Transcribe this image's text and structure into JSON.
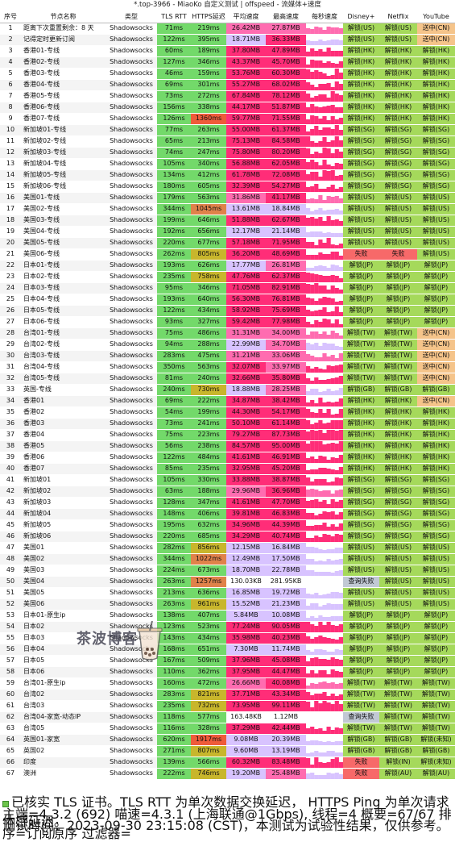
{
  "window_title": "*.top-3966 - MiaoKo 自定义测试 | offspeed - 流媒体+速度",
  "headers": [
    "序号",
    "节点名称",
    "类型",
    "TLS RTT",
    "HTTPS延迟",
    "平均速度",
    "最高速度",
    "每秒速度",
    "Disney+",
    "Netflix",
    "YouTube"
  ],
  "rows": [
    [
      "1",
      "距离下次重置剩余：8 天",
      "Shadowsocks",
      "71ms",
      "219ms",
      "26.42MB",
      "27.87MB",
      "解锁(US)",
      "解锁(US)",
      "送中(CN)"
    ],
    [
      "2",
      "记得定时更新订阅",
      "Shadowsocks",
      "122ms",
      "395ms",
      "18.71MB",
      "36.33MB",
      "解锁(US)",
      "解锁(US)",
      "送中(CN)"
    ],
    [
      "3",
      "香港01-专线",
      "Shadowsocks",
      "60ms",
      "189ms",
      "37.80MB",
      "47.89MB",
      "解锁(HK)",
      "解锁(HK)",
      "解锁(HK)"
    ],
    [
      "4",
      "香港02-专线",
      "Shadowsocks",
      "127ms",
      "346ms",
      "43.37MB",
      "45.70MB",
      "解锁(HK)",
      "解锁(HK)",
      "解锁(HK)"
    ],
    [
      "5",
      "香港03-专线",
      "Shadowsocks",
      "46ms",
      "159ms",
      "53.76MB",
      "60.30MB",
      "解锁(HK)",
      "解锁(HK)",
      "解锁(HK)"
    ],
    [
      "6",
      "香港04-专线",
      "Shadowsocks",
      "69ms",
      "301ms",
      "55.27MB",
      "68.02MB",
      "解锁(HK)",
      "解锁(HK)",
      "解锁(HK)"
    ],
    [
      "7",
      "香港05-专线",
      "Shadowsocks",
      "73ms",
      "272ms",
      "67.84MB",
      "78.12MB",
      "解锁(HK)",
      "解锁(HK)",
      "解锁(HK)"
    ],
    [
      "8",
      "香港06-专线",
      "Shadowsocks",
      "156ms",
      "338ms",
      "44.17MB",
      "51.87MB",
      "解锁(HK)",
      "解锁(HK)",
      "解锁(HK)"
    ],
    [
      "9",
      "香港07-专线",
      "Shadowsocks",
      "126ms",
      "1360ms",
      "59.77MB",
      "71.55MB",
      "解锁(HK)",
      "解锁(HK)",
      "解锁(HK)"
    ],
    [
      "10",
      "新加坡01-专线",
      "Shadowsocks",
      "77ms",
      "263ms",
      "55.00MB",
      "61.37MB",
      "解锁(SG)",
      "解锁(SG)",
      "解锁(SG)"
    ],
    [
      "11",
      "新加坡02-专线",
      "Shadowsocks",
      "65ms",
      "213ms",
      "75.13MB",
      "84.58MB",
      "解锁(SG)",
      "解锁(SG)",
      "解锁(SG)"
    ],
    [
      "12",
      "新加坡03-专线",
      "Shadowsocks",
      "74ms",
      "247ms",
      "75.80MB",
      "80.20MB",
      "解锁(SG)",
      "解锁(SG)",
      "解锁(SG)"
    ],
    [
      "13",
      "新加坡04-专线",
      "Shadowsocks",
      "105ms",
      "340ms",
      "56.88MB",
      "62.05MB",
      "解锁(SG)",
      "解锁(SG)",
      "解锁(SG)"
    ],
    [
      "14",
      "新加坡05-专线",
      "Shadowsocks",
      "134ms",
      "412ms",
      "61.78MB",
      "72.08MB",
      "解锁(SG)",
      "解锁(SG)",
      "解锁(SG)"
    ],
    [
      "15",
      "新加坡06-专线",
      "Shadowsocks",
      "180ms",
      "605ms",
      "32.39MB",
      "54.27MB",
      "解锁(SG)",
      "解锁(SG)",
      "解锁(SG)"
    ],
    [
      "16",
      "美国01-专线",
      "Shadowsocks",
      "179ms",
      "563ms",
      "31.86MB",
      "41.17MB",
      "解锁(US)",
      "解锁(US)",
      "解锁(US)"
    ],
    [
      "17",
      "美国02-专线",
      "Shadowsocks",
      "344ms",
      "1045ms",
      "13.61MB",
      "18.84MB",
      "解锁(US)",
      "解锁(US)",
      "解锁(US)"
    ],
    [
      "18",
      "美国03-专线",
      "Shadowsocks",
      "199ms",
      "646ms",
      "51.88MB",
      "62.67MB",
      "解锁(US)",
      "解锁(US)",
      "解锁(US)"
    ],
    [
      "19",
      "美国04-专线",
      "Shadowsocks",
      "192ms",
      "656ms",
      "12.17MB",
      "21.14MB",
      "解锁(US)",
      "解锁(US)",
      "解锁(US)"
    ],
    [
      "20",
      "美国05-专线",
      "Shadowsocks",
      "220ms",
      "677ms",
      "57.18MB",
      "71.95MB",
      "解锁(US)",
      "解锁(US)",
      "解锁(US)"
    ],
    [
      "21",
      "美国06-专线",
      "Shadowsocks",
      "262ms",
      "805ms",
      "36.20MB",
      "48.69MB",
      "失败",
      "失败",
      "解锁(US)"
    ],
    [
      "22",
      "日本01-专线",
      "Shadowsocks",
      "193ms",
      "626ms",
      "17.77MB",
      "26.81MB",
      "解锁(JP)",
      "解锁(JP)",
      "解锁(JP)"
    ],
    [
      "23",
      "日本02-专线",
      "Shadowsocks",
      "235ms",
      "758ms",
      "47.76MB",
      "62.37MB",
      "解锁(JP)",
      "解锁(JP)",
      "解锁(JP)"
    ],
    [
      "24",
      "日本03-专线",
      "Shadowsocks",
      "95ms",
      "346ms",
      "71.05MB",
      "82.91MB",
      "解锁(JP)",
      "解锁(JP)",
      "解锁(JP)"
    ],
    [
      "25",
      "日本04-专线",
      "Shadowsocks",
      "193ms",
      "640ms",
      "56.30MB",
      "76.81MB",
      "解锁(JP)",
      "解锁(JP)",
      "解锁(JP)"
    ],
    [
      "26",
      "日本05-专线",
      "Shadowsocks",
      "122ms",
      "434ms",
      "58.92MB",
      "75.69MB",
      "解锁(JP)",
      "解锁(JP)",
      "解锁(JP)"
    ],
    [
      "27",
      "日本06-专线",
      "Shadowsocks",
      "93ms",
      "327ms",
      "59.42MB",
      "77.98MB",
      "解锁(JP)",
      "解锁(JP)",
      "解锁(JP)"
    ],
    [
      "28",
      "台湾01-专线",
      "Shadowsocks",
      "75ms",
      "486ms",
      "31.31MB",
      "34.00MB",
      "解锁(TW)",
      "解锁(TW)",
      "送中(CN)"
    ],
    [
      "29",
      "台湾02-专线",
      "Shadowsocks",
      "94ms",
      "288ms",
      "22.99MB",
      "34.70MB",
      "解锁(TW)",
      "解锁(TW)",
      "送中(CN)"
    ],
    [
      "30",
      "台湾03-专线",
      "Shadowsocks",
      "283ms",
      "475ms",
      "31.21MB",
      "33.06MB",
      "解锁(TW)",
      "解锁(TW)",
      "送中(CN)"
    ],
    [
      "31",
      "台湾04-专线",
      "Shadowsocks",
      "350ms",
      "563ms",
      "32.07MB",
      "33.97MB",
      "解锁(TW)",
      "解锁(TW)",
      "送中(CN)"
    ],
    [
      "32",
      "台湾05-专线",
      "Shadowsocks",
      "81ms",
      "240ms",
      "32.66MB",
      "35.80MB",
      "解锁(TW)",
      "解锁(TW)",
      "送中(CN)"
    ],
    [
      "33",
      "英国-专线",
      "Shadowsocks",
      "240ms",
      "730ms",
      "18.88MB",
      "28.25MB",
      "解锁(GB)",
      "解锁(GB)",
      "解锁(GB)"
    ],
    [
      "34",
      "香港01",
      "Shadowsocks",
      "69ms",
      "222ms",
      "34.87MB",
      "38.42MB",
      "解锁(HK)",
      "解锁(HK)",
      "送中(CN)"
    ],
    [
      "35",
      "香港02",
      "Shadowsocks",
      "54ms",
      "199ms",
      "44.30MB",
      "54.17MB",
      "解锁(HK)",
      "解锁(HK)",
      "解锁(HK)"
    ],
    [
      "36",
      "香港03",
      "Shadowsocks",
      "73ms",
      "241ms",
      "50.10MB",
      "61.14MB",
      "解锁(HK)",
      "解锁(HK)",
      "解锁(HK)"
    ],
    [
      "37",
      "香港04",
      "Shadowsocks",
      "75ms",
      "223ms",
      "79.27MB",
      "87.73MB",
      "解锁(HK)",
      "解锁(HK)",
      "解锁(HK)"
    ],
    [
      "38",
      "香港05",
      "Shadowsocks",
      "56ms",
      "238ms",
      "84.57MB",
      "95.00MB",
      "解锁(HK)",
      "解锁(HK)",
      "解锁(HK)"
    ],
    [
      "39",
      "香港06",
      "Shadowsocks",
      "122ms",
      "484ms",
      "41.61MB",
      "46.91MB",
      "解锁(HK)",
      "解锁(HK)",
      "解锁(HK)"
    ],
    [
      "40",
      "香港07",
      "Shadowsocks",
      "85ms",
      "235ms",
      "32.95MB",
      "45.20MB",
      "解锁(HK)",
      "解锁(HK)",
      "解锁(HK)"
    ],
    [
      "41",
      "新加坡01",
      "Shadowsocks",
      "105ms",
      "330ms",
      "33.88MB",
      "38.87MB",
      "解锁(SG)",
      "解锁(SG)",
      "解锁(SG)"
    ],
    [
      "42",
      "新加坡02",
      "Shadowsocks",
      "63ms",
      "188ms",
      "29.96MB",
      "36.96MB",
      "解锁(SG)",
      "解锁(SG)",
      "解锁(SG)"
    ],
    [
      "43",
      "新加坡03",
      "Shadowsocks",
      "128ms",
      "347ms",
      "41.61MB",
      "47.70MB",
      "解锁(SG)",
      "解锁(SG)",
      "解锁(SG)"
    ],
    [
      "44",
      "新加坡04",
      "Shadowsocks",
      "148ms",
      "406ms",
      "39.81MB",
      "46.83MB",
      "解锁(SG)",
      "解锁(SG)",
      "解锁(SG)"
    ],
    [
      "45",
      "新加坡05",
      "Shadowsocks",
      "195ms",
      "632ms",
      "34.96MB",
      "44.39MB",
      "解锁(SG)",
      "解锁(SG)",
      "解锁(SG)"
    ],
    [
      "46",
      "新加坡06",
      "Shadowsocks",
      "220ms",
      "685ms",
      "34.29MB",
      "40.74MB",
      "解锁(SG)",
      "解锁(SG)",
      "解锁(SG)"
    ],
    [
      "47",
      "美国01",
      "Shadowsocks",
      "282ms",
      "856ms",
      "12.15MB",
      "16.84MB",
      "解锁(US)",
      "解锁(US)",
      "解锁(US)"
    ],
    [
      "48",
      "美国02",
      "Shadowsocks",
      "344ms",
      "1022ms",
      "12.49MB",
      "17.50MB",
      "解锁(US)",
      "解锁(US)",
      "解锁(US)"
    ],
    [
      "49",
      "美国03",
      "Shadowsocks",
      "224ms",
      "673ms",
      "18.70MB",
      "22.78MB",
      "解锁(US)",
      "解锁(US)",
      "解锁(US)"
    ],
    [
      "50",
      "美国04",
      "Shadowsocks",
      "263ms",
      "1257ms",
      "130.03KB",
      "281.95KB",
      "查询失败",
      "解锁(US)",
      "解锁(US)"
    ],
    [
      "51",
      "美国05",
      "Shadowsocks",
      "213ms",
      "636ms",
      "16.85MB",
      "19.72MB",
      "解锁(US)",
      "解锁(US)",
      "解锁(US)"
    ],
    [
      "52",
      "美国06",
      "Shadowsocks",
      "263ms",
      "961ms",
      "15.52MB",
      "21.23MB",
      "解锁(US)",
      "解锁(US)",
      "解锁(US)"
    ],
    [
      "53",
      "日本01-原生ip",
      "Shadowsocks",
      "138ms",
      "407ms",
      "5.84MB",
      "10.08MB",
      "解锁(JP)",
      "解锁(JP)",
      "解锁(JP)"
    ],
    [
      "54",
      "日本02",
      "Shadowsocks",
      "123ms",
      "523ms",
      "77.24MB",
      "90.05MB",
      "解锁(JP)",
      "解锁(JP)",
      "解锁(JP)"
    ],
    [
      "55",
      "日本03",
      "Shadowsocks",
      "143ms",
      "434ms",
      "35.98MB",
      "40.23MB",
      "解锁(JP)",
      "解锁(JP)",
      "解锁(JP)"
    ],
    [
      "56",
      "日本04",
      "Shadowsocks",
      "168ms",
      "651ms",
      "7.30MB",
      "11.74MB",
      "解锁(JP)",
      "解锁(JP)",
      "解锁(JP)"
    ],
    [
      "57",
      "日本05",
      "Shadowsocks",
      "167ms",
      "509ms",
      "37.96MB",
      "45.08MB",
      "解锁(JP)",
      "解锁(JP)",
      "解锁(JP)"
    ],
    [
      "58",
      "日本06",
      "Shadowsocks",
      "110ms",
      "362ms",
      "37.95MB",
      "44.47MB",
      "解锁(JP)",
      "解锁(JP)",
      "解锁(JP)"
    ],
    [
      "59",
      "台湾01-原生ip",
      "Shadowsocks",
      "160ms",
      "472ms",
      "26.66MB",
      "40.08MB",
      "解锁(TW)",
      "解锁(TW)",
      "解锁(TW)"
    ],
    [
      "60",
      "台湾02",
      "Shadowsocks",
      "283ms",
      "821ms",
      "37.71MB",
      "43.34MB",
      "解锁(TW)",
      "解锁(TW)",
      "解锁(TW)"
    ],
    [
      "61",
      "台湾03",
      "Shadowsocks",
      "235ms",
      "732ms",
      "73.95MB",
      "99.11MB",
      "解锁(TW)",
      "解锁(TW)",
      "解锁(TW)"
    ],
    [
      "62",
      "台湾04-家宽-动态IP",
      "Shadowsocks",
      "118ms",
      "577ms",
      "163.48KB",
      "1.12MB",
      "查询失败",
      "解锁(TW)",
      "解锁(TW)"
    ],
    [
      "63",
      "台湾05",
      "Shadowsocks",
      "116ms",
      "328ms",
      "37.29MB",
      "42.44MB",
      "解锁(TW)",
      "解锁(TW)",
      "解锁(TW)"
    ],
    [
      "64",
      "英国01-家宽",
      "Shadowsocks",
      "620ms",
      "1917ms",
      "9.08MB",
      "20.39MB",
      "解锁(GB)",
      "解锁(GB)",
      "解锁(未知)"
    ],
    [
      "65",
      "英国02",
      "Shadowsocks",
      "271ms",
      "807ms",
      "9.60MB",
      "13.19MB",
      "解锁(GB)",
      "解锁(GB)",
      "解锁(GB)"
    ],
    [
      "66",
      "印度",
      "Shadowsocks",
      "139ms",
      "566ms",
      "60.32MB",
      "83.48MB",
      "失败",
      "解锁(IN)",
      "解锁(未知)"
    ],
    [
      "67",
      "澳洲",
      "Shadowsocks",
      "222ms",
      "746ms",
      "19.20MB",
      "25.48MB",
      "失败",
      "解锁(AU)",
      "解锁(AU)"
    ]
  ],
  "footer": {
    "line1": "已核实 TLS 证书。TLS RTT 为单次数据交换延迟， HTTPS Ping 为单次请求体感延迟。",
    "line2": "主端=4.3.2 (692) 喵速=4.3.1 (上海联通@1Gbps), 线程=4 概要=67/67 排序=订阅原序 过滤器=",
    "line3": "测试时间：2023-09-30 23:15:08 (CST)，本测试为试验性结果，仅供参考。"
  },
  "watermark_text": "茶波博客",
  "colors": {
    "green": "#73d96a",
    "speed_hot": "#ff2d78",
    "speed_low": "#d8c3ff",
    "unlock": "#a5d95b",
    "cn": "#f5c48a",
    "fail": "#f76969",
    "query_fail": "#c1c9d4"
  }
}
